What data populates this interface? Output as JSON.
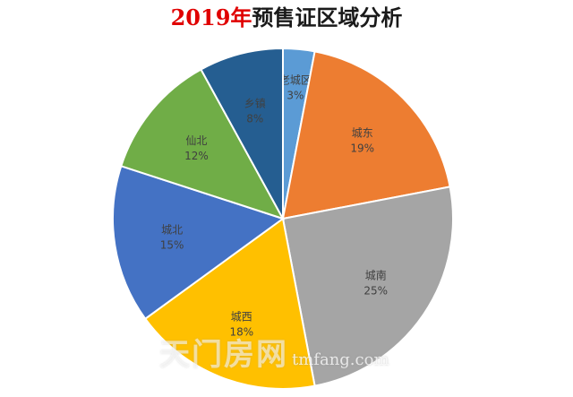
{
  "header": {
    "title_year": "2019年",
    "title_rest": "预售证区域分析"
  },
  "watermark": {
    "brand": "天门房网",
    "domain": "tmfang.com"
  },
  "chart_data": {
    "type": "pie",
    "title": "2019年预售证区域分析",
    "slices": [
      {
        "label": "老城区",
        "value": 3,
        "percent_label": "3%",
        "color": "#5b9bd5"
      },
      {
        "label": "城东",
        "value": 19,
        "percent_label": "19%",
        "color": "#ed7d31"
      },
      {
        "label": "城南",
        "value": 25,
        "percent_label": "25%",
        "color": "#a5a5a5"
      },
      {
        "label": "城西",
        "value": 18,
        "percent_label": "18%",
        "color": "#ffc000"
      },
      {
        "label": "城北",
        "value": 15,
        "percent_label": "15%",
        "color": "#4472c4"
      },
      {
        "label": "仙北",
        "value": 12,
        "percent_label": "12%",
        "color": "#70ad47"
      },
      {
        "label": "乡镇",
        "value": 8,
        "percent_label": "8%",
        "color": "#255e91"
      }
    ],
    "start_angle": "top",
    "direction": "clockwise",
    "legend": "none"
  }
}
